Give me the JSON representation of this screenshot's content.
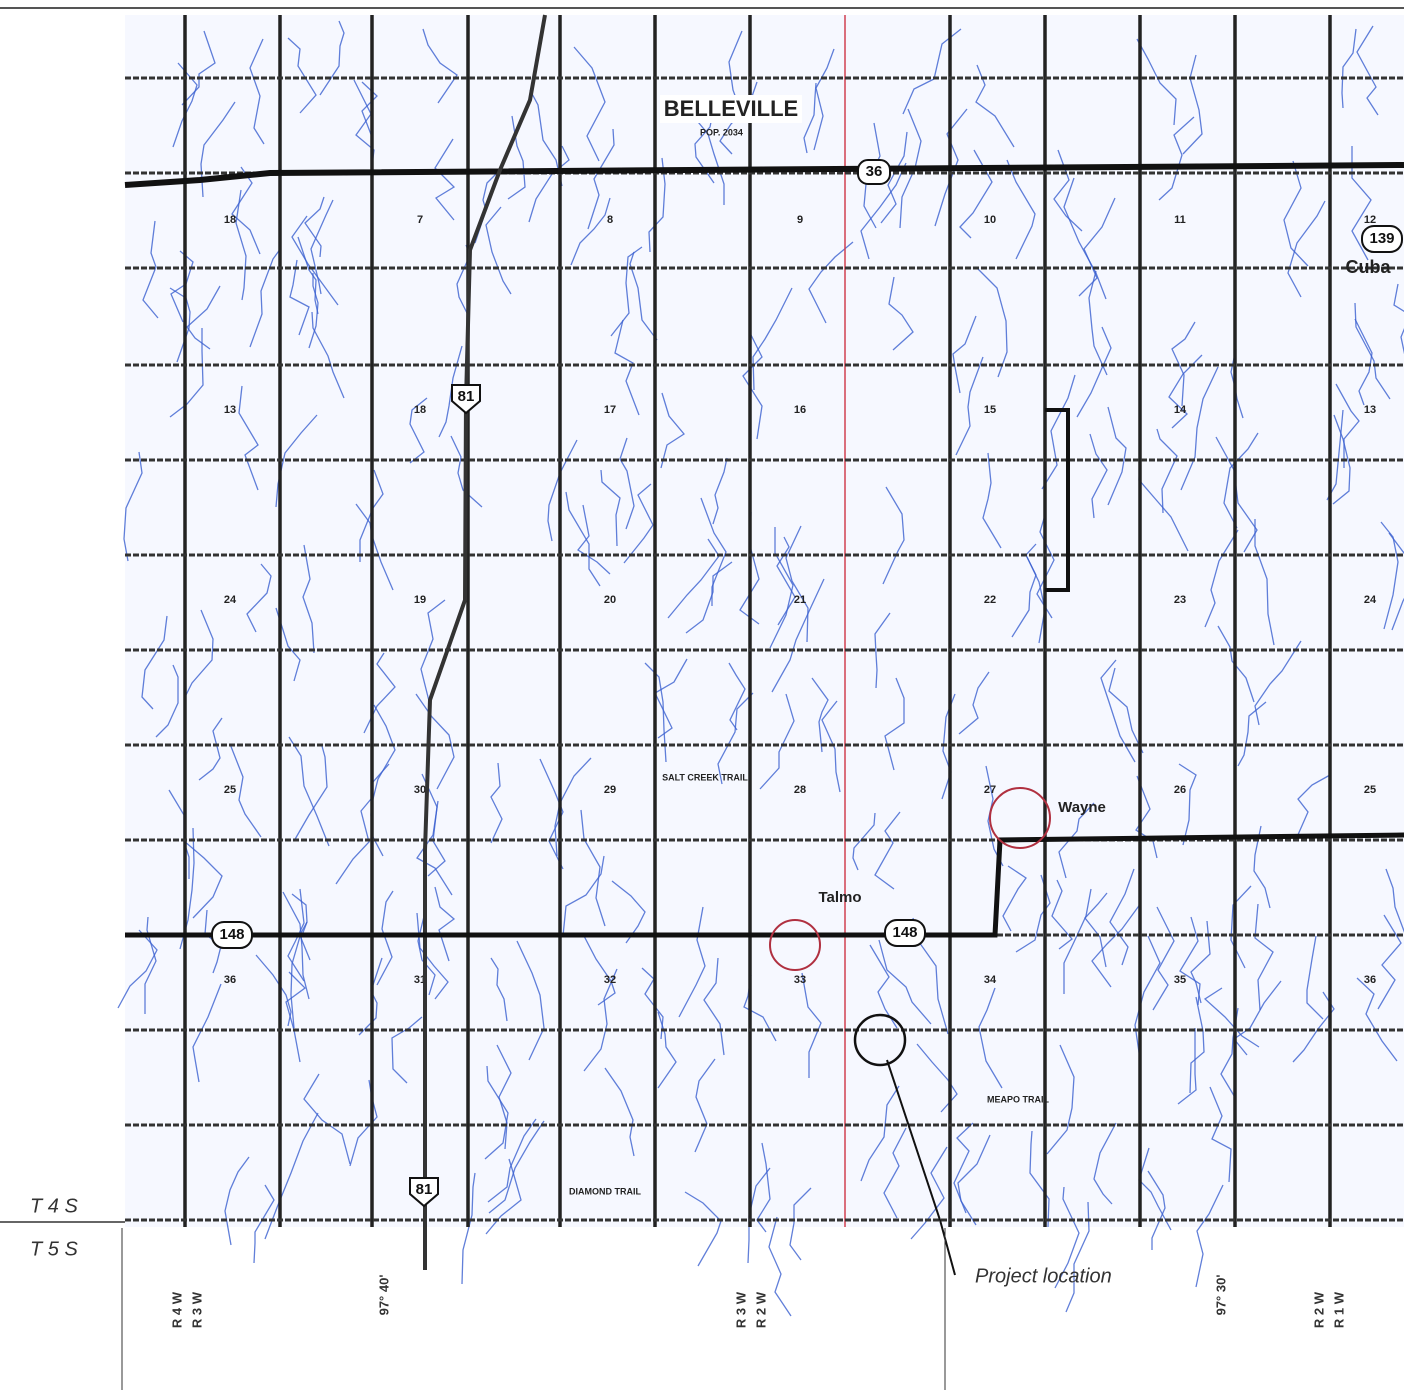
{
  "map": {
    "towns": [
      "BELLEVILLE",
      "Cuba",
      "Wayne",
      "Talmo"
    ],
    "population": "POP. 2034",
    "routes": [
      "36",
      "81",
      "148",
      "148",
      "139",
      "81"
    ],
    "trails": [
      "SALT CREEK TRAIL",
      "MEAPO TRAIL",
      "DIAMOND TRAIL"
    ],
    "townships": [
      "T 4 S",
      "T 5 S"
    ],
    "ranges": [
      "R 4 W",
      "R 3 W",
      "R 3 W",
      "R 2 W",
      "R 2 W",
      "R 1 W"
    ],
    "longitudes": [
      "97° 40'",
      "97° 30'"
    ],
    "annotation": "Project location",
    "sections": [
      "18",
      "7",
      "8",
      "9",
      "10",
      "11",
      "12",
      "13",
      "18",
      "17",
      "16",
      "15",
      "14",
      "13",
      "24",
      "19",
      "20",
      "21",
      "22",
      "23",
      "24",
      "25",
      "30",
      "29",
      "28",
      "27",
      "26",
      "25",
      "36",
      "31",
      "32",
      "33",
      "34",
      "35",
      "36"
    ]
  }
}
